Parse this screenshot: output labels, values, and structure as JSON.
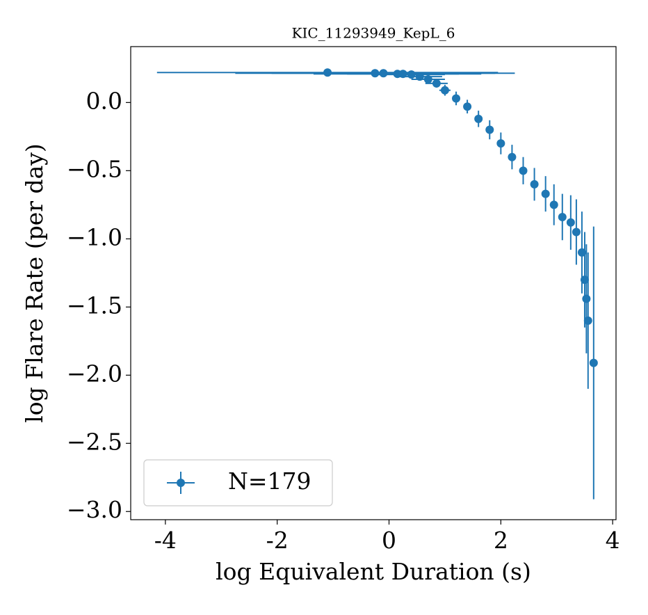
{
  "chart_data": {
    "type": "errorbar",
    "title": "KIC_11293949_KepL_6",
    "xlabel": "log Equivalent Duration (s)",
    "ylabel": "log Flare Rate (per day)",
    "legend": "lower left",
    "series": [
      {
        "name": "N=179",
        "color": "#1f77b4",
        "x": [
          -1.1,
          -0.25,
          -0.1,
          0.15,
          0.25,
          0.4,
          0.55,
          0.7,
          0.85,
          1.0,
          1.2,
          1.4,
          1.6,
          1.8,
          2.0,
          2.2,
          2.4,
          2.6,
          2.8,
          2.95,
          3.1,
          3.25,
          3.35,
          3.45,
          3.5,
          3.53,
          3.56,
          3.66
        ],
        "values": [
          0.22,
          0.215,
          0.215,
          0.21,
          0.21,
          0.205,
          0.19,
          0.17,
          0.14,
          0.09,
          0.03,
          -0.03,
          -0.12,
          -0.2,
          -0.3,
          -0.4,
          -0.5,
          -0.6,
          -0.67,
          -0.75,
          -0.84,
          -0.88,
          -0.95,
          -1.1,
          -1.3,
          -1.44,
          -1.6,
          -1.91
        ],
        "xerr": [
          3.05,
          2.5,
          2.0,
          1.5,
          1.0,
          0.6,
          0.4,
          0.3,
          0.2,
          0.1,
          0.06,
          0.06,
          0.06,
          0.06,
          0.06,
          0.06,
          0.06,
          0.05,
          0.05,
          0.05,
          0.05,
          0.05,
          0.05,
          0.05,
          0.04,
          0.04,
          0.04,
          0.04
        ],
        "yerr": [
          0.02,
          0.02,
          0.02,
          0.02,
          0.02,
          0.02,
          0.03,
          0.03,
          0.03,
          0.04,
          0.05,
          0.05,
          0.06,
          0.07,
          0.08,
          0.09,
          0.1,
          0.12,
          0.13,
          0.15,
          0.17,
          0.2,
          0.24,
          0.3,
          0.35,
          0.4,
          0.5,
          1.0
        ]
      }
    ],
    "xlim": [
      -4.62,
      4.06
    ],
    "xticks": [
      -4,
      -2,
      0,
      2,
      4
    ],
    "ylim": [
      -3.06,
      0.41
    ],
    "yticks": [
      {
        "value": 0,
        "label": "0.0"
      },
      {
        "value": -0.5,
        "label": "−0.5"
      },
      {
        "value": -1,
        "label": "−1.0"
      },
      {
        "value": -1.5,
        "label": "−1.5"
      },
      {
        "value": -2,
        "label": "−2.0"
      },
      {
        "value": -2.5,
        "label": "−2.5"
      },
      {
        "value": -3,
        "label": "−3.0"
      }
    ]
  }
}
